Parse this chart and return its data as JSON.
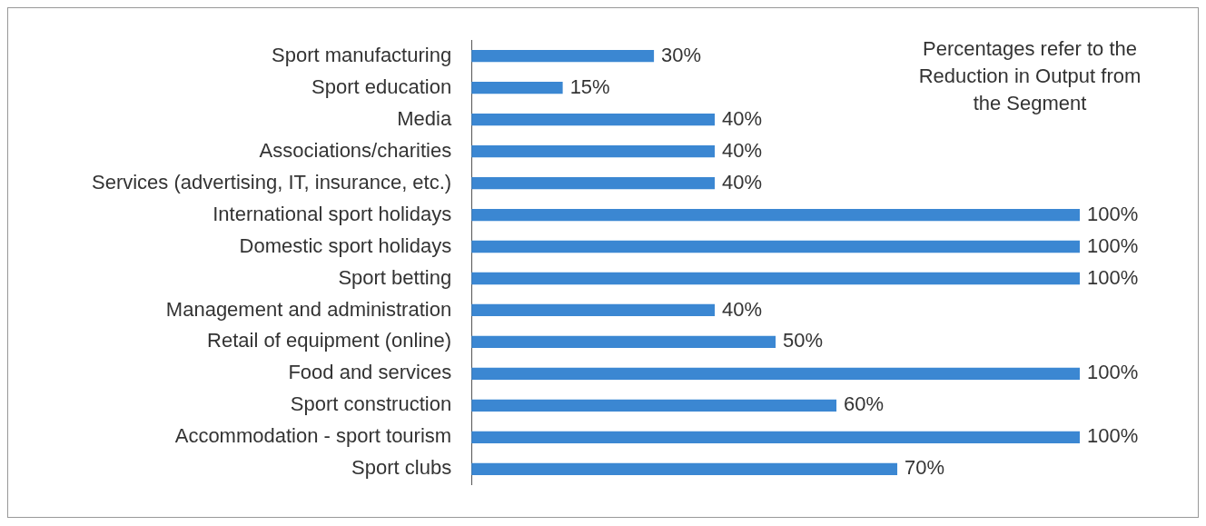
{
  "chart_data": {
    "type": "bar",
    "orientation": "horizontal",
    "categories": [
      "Sport manufacturing",
      "Sport education",
      "Media",
      "Associations/charities",
      "Services (advertising, IT, insurance, etc.)",
      "International sport holidays",
      "Domestic sport holidays",
      "Sport betting",
      "Management and administration",
      "Retail of equipment (online)",
      "Food and services",
      "Sport construction",
      "Accommodation - sport tourism",
      "Sport clubs"
    ],
    "values": [
      30,
      15,
      40,
      40,
      40,
      100,
      100,
      100,
      40,
      50,
      100,
      60,
      100,
      70
    ],
    "value_labels": [
      "30%",
      "15%",
      "40%",
      "40%",
      "40%",
      "100%",
      "100%",
      "100%",
      "40%",
      "50%",
      "100%",
      "60%",
      "100%",
      "70%"
    ],
    "data_labels": true,
    "color": "#3b87d2",
    "annotations": [
      "Percentages refer to the Reduction in Output from the Segment"
    ]
  }
}
